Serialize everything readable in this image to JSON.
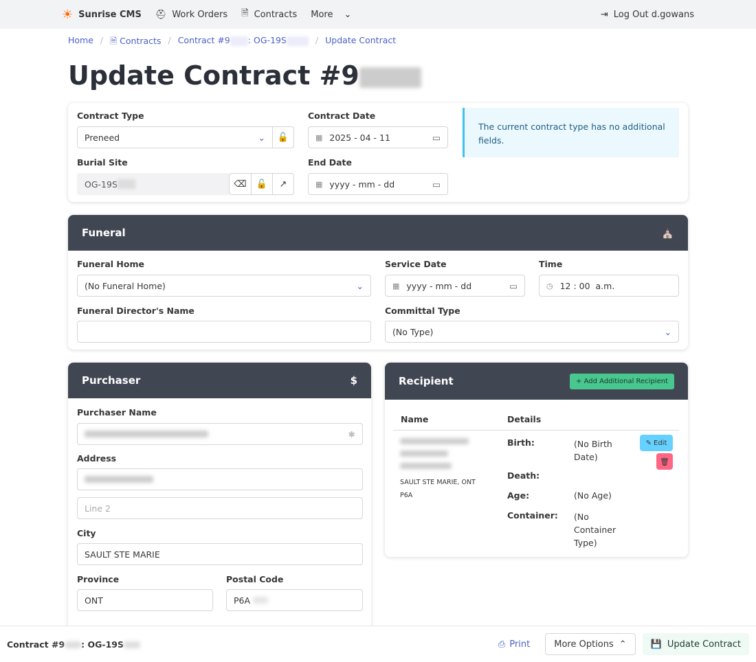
{
  "nav": {
    "brand": "Sunrise CMS",
    "work_orders": "Work Orders",
    "contracts": "Contracts",
    "more": "More",
    "logout": "Log Out d.gowans"
  },
  "breadcrumb": {
    "home": "Home",
    "contracts": "Contracts",
    "contract_prefix": "Contract #9",
    "contract_mid": ": OG-19S",
    "current": "Update Contract"
  },
  "page_title": "Update Contract #9",
  "contract": {
    "type_label": "Contract Type",
    "type_value": "Preneed",
    "date_label": "Contract Date",
    "date_value": "2025 - 04 - 11",
    "site_label": "Burial Site",
    "site_value": "OG-19S",
    "end_label": "End Date",
    "end_placeholder": "yyyy - mm - dd",
    "note": "The current contract type has no additional fields."
  },
  "funeral": {
    "title": "Funeral",
    "home_label": "Funeral Home",
    "home_value": "(No Funeral Home)",
    "service_label": "Service Date",
    "service_placeholder": "yyyy - mm - dd",
    "time_label": "Time",
    "time_value": "12 : 00  a.m.",
    "director_label": "Funeral Director's Name",
    "director_value": "",
    "committal_label": "Committal Type",
    "committal_value": "(No Type)"
  },
  "purchaser": {
    "title": "Purchaser",
    "name_label": "Purchaser Name",
    "address_label": "Address",
    "line2_placeholder": "Line 2",
    "city_label": "City",
    "city_value": "SAULT STE MARIE",
    "province_label": "Province",
    "province_value": "ONT",
    "postal_label": "Postal Code",
    "postal_value": "P6A"
  },
  "recipient": {
    "title": "Recipient",
    "add_label": "Add Additional Recipient",
    "col_name": "Name",
    "col_details": "Details",
    "city_line": "SAULT STE MARIE, ONT",
    "postal": "P6A",
    "birth_label": "Birth:",
    "birth_value": "(No Birth Date)",
    "death_label": "Death:",
    "age_label": "Age:",
    "age_value": "(No Age)",
    "container_label": "Container:",
    "container_value": "(No Container Type)",
    "edit_label": "Edit"
  },
  "footer": {
    "contract_prefix": "Contract #9",
    "contract_mid": ": OG-19S",
    "print": "Print",
    "more_options": "More Options",
    "update": "Update Contract"
  },
  "colors": {
    "link": "#485fc7",
    "header": "#414653",
    "success": "#48c78e",
    "info": "#66d1ff",
    "danger": "#ff6685"
  }
}
